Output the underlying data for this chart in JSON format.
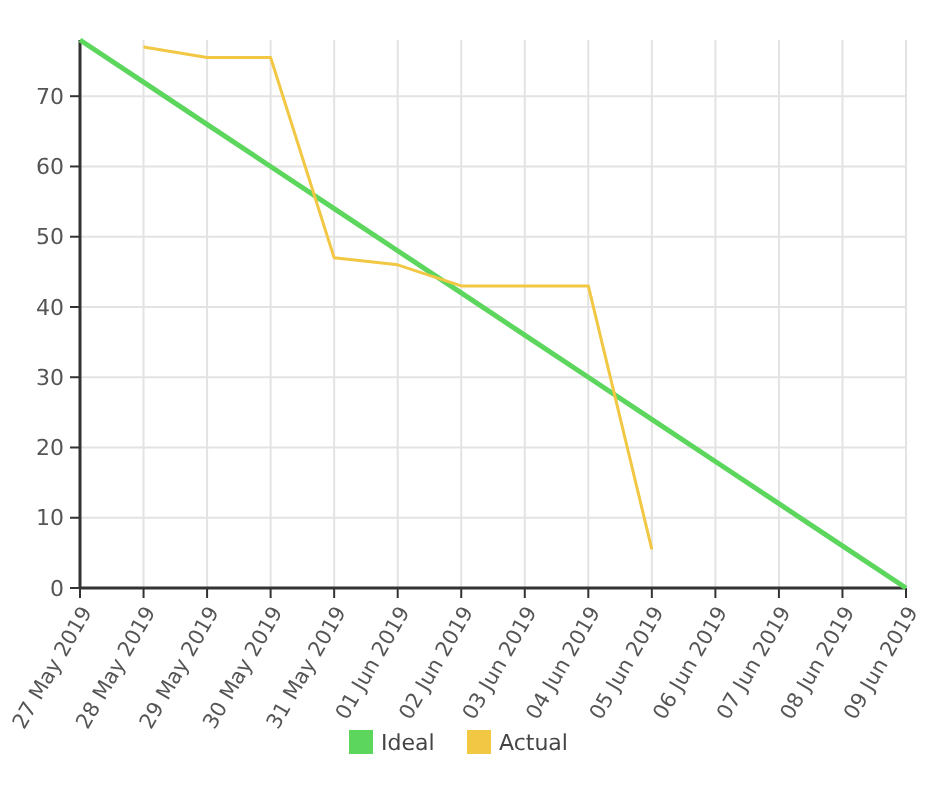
{
  "chart_data": {
    "type": "line",
    "categories": [
      "27 May 2019",
      "28 May 2019",
      "29 May 2019",
      "30 May 2019",
      "31 May 2019",
      "01 Jun 2019",
      "02 Jun 2019",
      "03 Jun 2019",
      "04 Jun 2019",
      "05 Jun 2019",
      "06 Jun 2019",
      "07 Jun 2019",
      "08 Jun 2019",
      "09 Jun 2019"
    ],
    "series": [
      {
        "name": "Ideal",
        "color": "#5cd65c",
        "values": [
          78,
          72,
          66,
          60,
          54,
          48,
          42,
          36,
          30,
          24,
          18,
          12,
          6,
          0
        ]
      },
      {
        "name": "Actual",
        "color": "#f2c744",
        "values": [
          null,
          77,
          75.5,
          75.5,
          47,
          46,
          43,
          43,
          43,
          5.5,
          null,
          null,
          null,
          null
        ]
      }
    ],
    "ylim": [
      0,
      78
    ],
    "yticks": [
      0,
      10,
      20,
      30,
      40,
      50,
      60,
      70
    ],
    "grid": true,
    "legend": "bottom",
    "marker": "none",
    "line_style": "solid"
  }
}
